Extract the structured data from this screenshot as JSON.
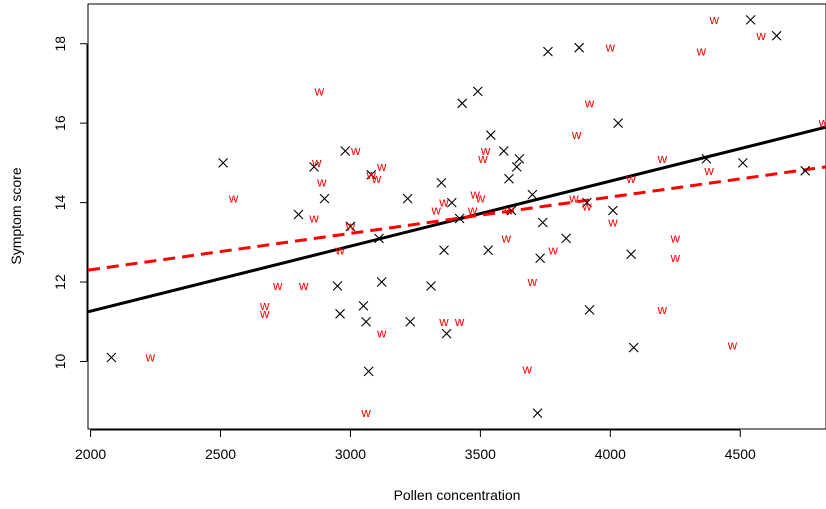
{
  "chart_data": {
    "type": "scatter",
    "title": "",
    "xlabel": "Pollen concentration",
    "ylabel": "Symptom score",
    "xlim": [
      1990,
      4830
    ],
    "ylim": [
      8.3,
      19.0
    ],
    "x_ticks": [
      2000,
      2500,
      3000,
      3500,
      4000,
      4500
    ],
    "y_ticks": [
      10,
      12,
      14,
      16,
      18
    ],
    "grid": false,
    "legend": "none",
    "colors": {
      "x_series": "#000000",
      "w_series": "#ff0000"
    },
    "series": [
      {
        "marker": "x",
        "color": "#000000",
        "points": [
          [
            2080,
            10.1
          ],
          [
            2510,
            15.0
          ],
          [
            2800,
            13.7
          ],
          [
            2860,
            14.9
          ],
          [
            2900,
            14.1
          ],
          [
            2950,
            11.9
          ],
          [
            2960,
            11.2
          ],
          [
            2980,
            15.3
          ],
          [
            3000,
            13.4
          ],
          [
            3050,
            11.4
          ],
          [
            3060,
            11.0
          ],
          [
            3070,
            9.75
          ],
          [
            3080,
            14.7
          ],
          [
            3110,
            13.1
          ],
          [
            3120,
            12.0
          ],
          [
            3220,
            14.1
          ],
          [
            3230,
            11.0
          ],
          [
            3310,
            11.9
          ],
          [
            3350,
            14.5
          ],
          [
            3360,
            12.8
          ],
          [
            3370,
            10.7
          ],
          [
            3390,
            14.0
          ],
          [
            3420,
            13.6
          ],
          [
            3430,
            16.5
          ],
          [
            3490,
            16.8
          ],
          [
            3530,
            12.8
          ],
          [
            3540,
            15.7
          ],
          [
            3590,
            15.3
          ],
          [
            3610,
            14.6
          ],
          [
            3620,
            13.8
          ],
          [
            3640,
            14.9
          ],
          [
            3650,
            15.1
          ],
          [
            3700,
            14.2
          ],
          [
            3720,
            8.7
          ],
          [
            3730,
            12.6
          ],
          [
            3740,
            13.5
          ],
          [
            3760,
            17.8
          ],
          [
            3830,
            13.1
          ],
          [
            3880,
            17.9
          ],
          [
            3910,
            14.0
          ],
          [
            3920,
            11.3
          ],
          [
            4010,
            13.8
          ],
          [
            4030,
            16.0
          ],
          [
            4080,
            12.7
          ],
          [
            4090,
            10.35
          ],
          [
            4370,
            15.1
          ],
          [
            4510,
            15.0
          ],
          [
            4540,
            18.6
          ],
          [
            4640,
            18.2
          ],
          [
            4750,
            14.8
          ]
        ]
      },
      {
        "marker": "w",
        "color": "#ff0000",
        "points": [
          [
            2230,
            10.1
          ],
          [
            2550,
            14.1
          ],
          [
            2670,
            11.4
          ],
          [
            2670,
            11.2
          ],
          [
            2720,
            11.9
          ],
          [
            2820,
            11.9
          ],
          [
            2860,
            13.6
          ],
          [
            2870,
            15.0
          ],
          [
            2880,
            16.8
          ],
          [
            2890,
            14.5
          ],
          [
            2960,
            12.8
          ],
          [
            3000,
            13.4
          ],
          [
            3020,
            15.3
          ],
          [
            3060,
            8.7
          ],
          [
            3080,
            14.7
          ],
          [
            3100,
            14.6
          ],
          [
            3120,
            10.7
          ],
          [
            3120,
            14.9
          ],
          [
            3330,
            13.8
          ],
          [
            3360,
            11.0
          ],
          [
            3360,
            14.0
          ],
          [
            3420,
            11.0
          ],
          [
            3470,
            13.8
          ],
          [
            3480,
            14.2
          ],
          [
            3500,
            14.1
          ],
          [
            3510,
            15.1
          ],
          [
            3520,
            15.3
          ],
          [
            3600,
            13.1
          ],
          [
            3610,
            13.8
          ],
          [
            3680,
            9.8
          ],
          [
            3700,
            12.0
          ],
          [
            3780,
            12.8
          ],
          [
            3860,
            14.1
          ],
          [
            3870,
            15.7
          ],
          [
            3910,
            13.9
          ],
          [
            3920,
            16.5
          ],
          [
            4000,
            17.9
          ],
          [
            4010,
            13.5
          ],
          [
            4080,
            14.6
          ],
          [
            4200,
            15.1
          ],
          [
            4200,
            11.3
          ],
          [
            4250,
            13.1
          ],
          [
            4250,
            12.6
          ],
          [
            4350,
            17.8
          ],
          [
            4380,
            14.8
          ],
          [
            4400,
            18.6
          ],
          [
            4470,
            10.4
          ],
          [
            4580,
            18.2
          ],
          [
            4820,
            16.0
          ]
        ]
      }
    ],
    "lines": [
      {
        "style": "solid",
        "color": "#000000",
        "width": 3,
        "x": [
          1990,
          4830
        ],
        "y": [
          11.25,
          15.9
        ]
      },
      {
        "style": "dashed",
        "color": "#ff0000",
        "width": 3,
        "x": [
          1990,
          4830
        ],
        "y": [
          12.3,
          14.9
        ]
      }
    ]
  }
}
